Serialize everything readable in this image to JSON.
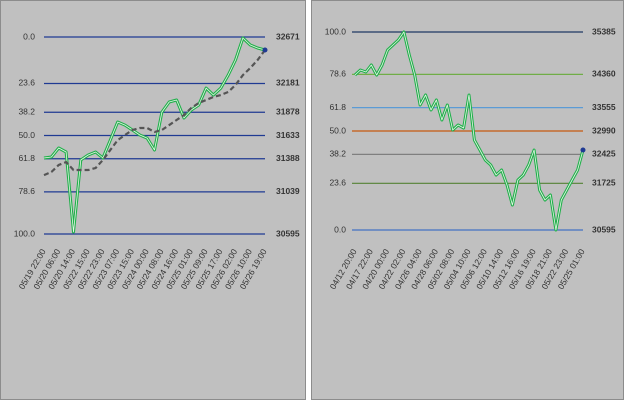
{
  "chart_data": [
    {
      "type": "line",
      "ylim": [
        30595,
        32671
      ],
      "levels": [
        {
          "ratio": "0.0",
          "value": 32671,
          "color": "#1f3a93"
        },
        {
          "ratio": "23.6",
          "value": 32181,
          "color": "#1f3a93"
        },
        {
          "ratio": "38.2",
          "value": 31878,
          "color": "#1f3a93"
        },
        {
          "ratio": "50.0",
          "value": 31633,
          "color": "#1f3a93"
        },
        {
          "ratio": "61.8",
          "value": 31388,
          "color": "#1f3a93"
        },
        {
          "ratio": "78.6",
          "value": 31039,
          "color": "#1f3a93"
        },
        {
          "ratio": "100.0",
          "value": 30595,
          "color": "#1f3a93"
        }
      ],
      "categories": [
        "05/19 22:00",
        null,
        "05/20 06:00",
        null,
        "05/20 14:00",
        null,
        "05/22 15:00",
        null,
        "05/22 23:00",
        null,
        "05/23 07:00",
        null,
        "05/23 15:00",
        null,
        "05/24 00:00",
        null,
        "05/24 08:00",
        null,
        "05/24 16:00",
        null,
        "05/25 01:00",
        null,
        "05/25 09:00",
        null,
        "05/25 17:00",
        null,
        "05/26 02:00",
        null,
        "05/26 10:00",
        null,
        "05/26 19:00"
      ],
      "series": [
        {
          "color": "#21b04b",
          "values": [
            31396,
            31406,
            31501,
            31459,
            30616,
            31375,
            31427,
            31459,
            31396,
            31585,
            31775,
            31743,
            31691,
            31638,
            31606,
            31480,
            31880,
            31986,
            32007,
            31817,
            31902,
            31954,
            32133,
            32060,
            32133,
            32270,
            32429,
            32660,
            32587,
            32555,
            32534
          ]
        },
        {
          "color": "#555555",
          "dashed": true,
          "values": [
            31216,
            31248,
            31322,
            31353,
            31269,
            31269,
            31269,
            31290,
            31375,
            31480,
            31585,
            31638,
            31691,
            31712,
            31712,
            31670,
            31691,
            31743,
            31796,
            31849,
            31923,
            31975,
            32007,
            32039,
            32060,
            32091,
            32165,
            32270,
            32344,
            32429,
            32534
          ]
        }
      ]
    },
    {
      "type": "line",
      "ylim": [
        30595,
        35385
      ],
      "levels": [
        {
          "ratio": "100.0",
          "value": 35385,
          "color": "#1f3864"
        },
        {
          "ratio": "78.6",
          "value": 34360,
          "color": "#70ad47"
        },
        {
          "ratio": "61.8",
          "value": 33555,
          "color": "#5b9bd5"
        },
        {
          "ratio": "50.0",
          "value": 32990,
          "color": "#c55a11"
        },
        {
          "ratio": "38.2",
          "value": 32425,
          "color": "#7f7f7f"
        },
        {
          "ratio": "23.6",
          "value": 31725,
          "color": "#548235"
        },
        {
          "ratio": "0.0",
          "value": 30595,
          "color": "#4472c4"
        }
      ],
      "categories": [
        "04/12 20:00",
        null,
        null,
        "04/17 22:00",
        null,
        null,
        "04/20 00:00",
        null,
        null,
        "04/22 02:00",
        null,
        null,
        "04/26 04:00",
        null,
        null,
        "04/28 06:00",
        null,
        null,
        "05/02 08:00",
        null,
        null,
        "05/04 10:00",
        null,
        null,
        "05/06 12:00",
        null,
        null,
        "05/10 14:00",
        null,
        null,
        "05/12 16:00",
        null,
        null,
        "05/16 19:00",
        null,
        null,
        "05/18 21:00",
        null,
        null,
        "05/22 23:00",
        null,
        null,
        "05/25 01:00"
      ],
      "series": [
        {
          "color": "#21b04b",
          "values": [
            34345,
            34466,
            34417,
            34587,
            34345,
            34587,
            34950,
            35071,
            35191,
            35385,
            34829,
            34345,
            33619,
            33861,
            33498,
            33740,
            33256,
            33619,
            33014,
            33135,
            33063,
            33861,
            32772,
            32531,
            32289,
            32168,
            31926,
            32047,
            31684,
            31200,
            31805,
            31926,
            32168,
            32531,
            31563,
            31321,
            31442,
            30595,
            31321,
            31563,
            31805,
            32047,
            32531
          ]
        }
      ]
    }
  ]
}
